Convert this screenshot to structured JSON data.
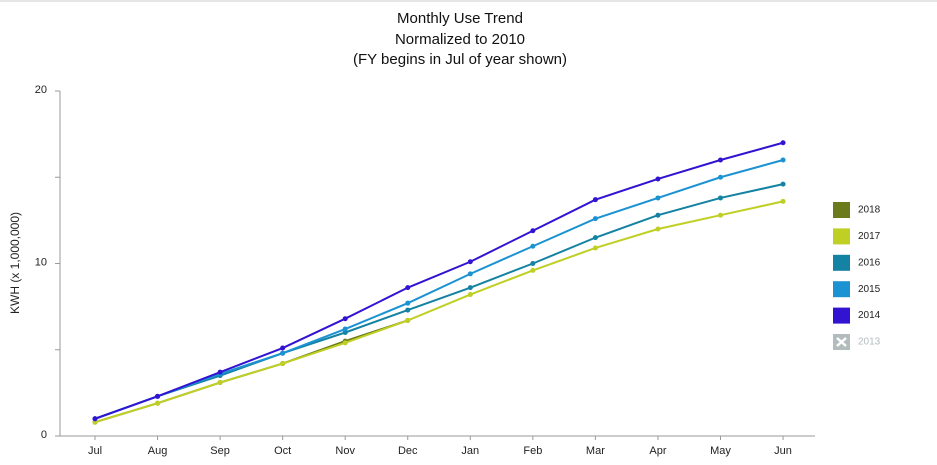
{
  "chart_data": {
    "type": "line",
    "title": "Monthly Use Trend",
    "subtitle": [
      "Normalized to 2010",
      "(FY begins in Jul of year shown)"
    ],
    "y_label": "KWH (x 1,000,000)",
    "categories": [
      "Jul",
      "Aug",
      "Sep",
      "Oct",
      "Nov",
      "Dec",
      "Jan",
      "Feb",
      "Mar",
      "Apr",
      "May",
      "Jun"
    ],
    "ylim": [
      0,
      20
    ],
    "yticks": [
      0,
      10,
      20
    ],
    "minor_yticks": [
      5,
      15
    ],
    "legend": "right",
    "series": [
      {
        "name": "2018",
        "color": "#6b7b1c",
        "values": [
          0.8,
          1.9,
          3.1,
          4.2,
          5.5,
          6.7,
          null,
          null,
          null,
          null,
          null,
          null
        ]
      },
      {
        "name": "2017",
        "color": "#bfcf23",
        "values": [
          0.8,
          1.9,
          3.1,
          4.2,
          5.4,
          6.7,
          8.2,
          9.6,
          10.9,
          12.0,
          12.8,
          13.6
        ]
      },
      {
        "name": "2016",
        "color": "#1482a2",
        "values": [
          1.0,
          2.3,
          3.5,
          4.8,
          6.0,
          7.3,
          8.6,
          10.0,
          11.5,
          12.8,
          13.8,
          14.6
        ]
      },
      {
        "name": "2015",
        "color": "#1b92d2",
        "values": [
          1.0,
          2.3,
          3.6,
          4.8,
          6.2,
          7.7,
          9.4,
          11.0,
          12.6,
          13.8,
          15.0,
          16.0
        ]
      },
      {
        "name": "2014",
        "color": "#3313d2",
        "values": [
          1.0,
          2.3,
          3.7,
          5.1,
          6.8,
          8.6,
          10.1,
          11.9,
          13.7,
          14.9,
          16.0,
          17.0
        ]
      },
      {
        "name": "2013",
        "color": "#b3bcbc",
        "visible": false,
        "values": [
          null,
          null,
          null,
          null,
          null,
          null,
          null,
          null,
          null,
          null,
          null,
          null
        ]
      }
    ]
  }
}
